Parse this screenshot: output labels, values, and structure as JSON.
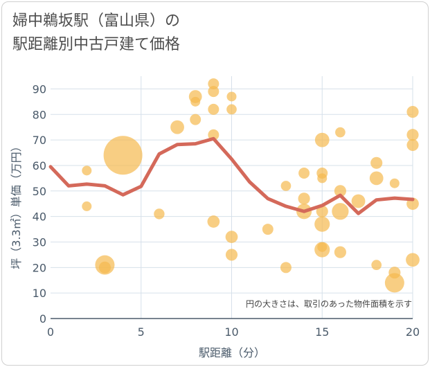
{
  "chart_data": {
    "type": "scatter",
    "title_line1": "婦中鵜坂駅（富山県）の",
    "title_line2": "駅距離別中古戸建て価格",
    "xlabel": "駅距離（分）",
    "ylabel": "坪（3.3㎡）単価（万円）",
    "xlim": [
      0,
      20
    ],
    "ylim": [
      0,
      95
    ],
    "x_ticks": [
      0,
      5,
      10,
      15,
      20
    ],
    "y_ticks": [
      0,
      10,
      20,
      30,
      40,
      50,
      60,
      70,
      80,
      90
    ],
    "grid": true,
    "note": "円の大きさは、取引のあった物件面積を示す",
    "bubble_color": "#f5b94f",
    "line_color": "#d4695a",
    "points": [
      {
        "x": 2,
        "y": 58,
        "s": 1
      },
      {
        "x": 2,
        "y": 44,
        "s": 1
      },
      {
        "x": 3,
        "y": 21,
        "s": 4
      },
      {
        "x": 3,
        "y": 20,
        "s": 1.5
      },
      {
        "x": 4,
        "y": 64,
        "s": 16
      },
      {
        "x": 6,
        "y": 41,
        "s": 1.2
      },
      {
        "x": 7,
        "y": 75,
        "s": 2
      },
      {
        "x": 8,
        "y": 87,
        "s": 1.8
      },
      {
        "x": 8,
        "y": 85,
        "s": 1
      },
      {
        "x": 8,
        "y": 78,
        "s": 1.3
      },
      {
        "x": 9,
        "y": 92,
        "s": 1.3
      },
      {
        "x": 9,
        "y": 89,
        "s": 1.3
      },
      {
        "x": 9,
        "y": 82,
        "s": 1.3
      },
      {
        "x": 9,
        "y": 72,
        "s": 1.3
      },
      {
        "x": 9,
        "y": 38,
        "s": 1.6
      },
      {
        "x": 10,
        "y": 87,
        "s": 1
      },
      {
        "x": 10,
        "y": 82,
        "s": 1.1
      },
      {
        "x": 10,
        "y": 32,
        "s": 1.6
      },
      {
        "x": 10,
        "y": 25,
        "s": 1.5
      },
      {
        "x": 12,
        "y": 35,
        "s": 1.3
      },
      {
        "x": 13,
        "y": 52,
        "s": 1.1
      },
      {
        "x": 13,
        "y": 20,
        "s": 1.3
      },
      {
        "x": 14,
        "y": 57,
        "s": 1.3
      },
      {
        "x": 14,
        "y": 47,
        "s": 1.5
      },
      {
        "x": 14,
        "y": 42,
        "s": 2.5
      },
      {
        "x": 15,
        "y": 70,
        "s": 2.2
      },
      {
        "x": 15,
        "y": 57,
        "s": 1.3
      },
      {
        "x": 15,
        "y": 55,
        "s": 1
      },
      {
        "x": 15,
        "y": 42,
        "s": 1.5
      },
      {
        "x": 15,
        "y": 37,
        "s": 2.5
      },
      {
        "x": 15,
        "y": 28,
        "s": 1
      },
      {
        "x": 15,
        "y": 27,
        "s": 2.5
      },
      {
        "x": 16,
        "y": 73,
        "s": 1.1
      },
      {
        "x": 16,
        "y": 50,
        "s": 1.5
      },
      {
        "x": 16,
        "y": 42,
        "s": 3
      },
      {
        "x": 16,
        "y": 26,
        "s": 1.5
      },
      {
        "x": 17,
        "y": 46,
        "s": 2
      },
      {
        "x": 18,
        "y": 61,
        "s": 1.5
      },
      {
        "x": 18,
        "y": 55,
        "s": 2
      },
      {
        "x": 18,
        "y": 21,
        "s": 1.1
      },
      {
        "x": 19,
        "y": 53,
        "s": 1
      },
      {
        "x": 19,
        "y": 18,
        "s": 1.5
      },
      {
        "x": 19,
        "y": 14,
        "s": 4
      },
      {
        "x": 20,
        "y": 81,
        "s": 1.5
      },
      {
        "x": 20,
        "y": 72,
        "s": 1.5
      },
      {
        "x": 20,
        "y": 68,
        "s": 1.5
      },
      {
        "x": 20,
        "y": 45,
        "s": 1.6
      },
      {
        "x": 20,
        "y": 23,
        "s": 2
      }
    ],
    "line": {
      "x": [
        0,
        1,
        2,
        3,
        4,
        5,
        6,
        7,
        8,
        9,
        10,
        11,
        12,
        13,
        14,
        15,
        16,
        17,
        18,
        19,
        20
      ],
      "y": [
        59.5,
        52,
        52.7,
        52,
        48.5,
        51.8,
        64.5,
        68.2,
        68.5,
        70.5,
        62.5,
        53.5,
        47,
        44,
        42,
        44.3,
        48.3,
        41.2,
        46.5,
        47.2,
        46.7
      ]
    }
  }
}
